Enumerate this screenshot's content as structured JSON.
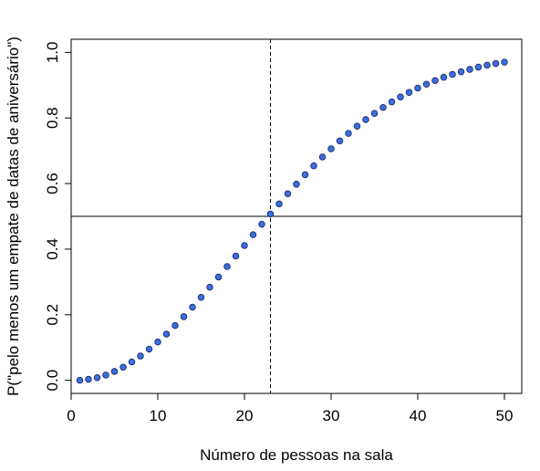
{
  "chart_data": {
    "type": "scatter",
    "xlabel": "Número de pessoas na sala",
    "ylabel": "P(\"pelo menos um empate de datas de aniversário\")",
    "xlim": [
      0,
      52
    ],
    "ylim": [
      -0.04,
      1.04
    ],
    "x_ticks": [
      0,
      10,
      20,
      30,
      40,
      50
    ],
    "y_ticks": [
      0.0,
      0.2,
      0.4,
      0.6,
      0.8,
      1.0
    ],
    "x_tick_labels": [
      "0",
      "10",
      "20",
      "30",
      "40",
      "50"
    ],
    "y_tick_labels": [
      "0.0",
      "0.2",
      "0.4",
      "0.6",
      "0.8",
      "1.0"
    ],
    "reference_lines": {
      "vertical_x": 23,
      "horizontal_y": 0.5
    },
    "grid": false,
    "legend": "none",
    "marker_color": "#3B6FE0",
    "marker_edge_color": "#1a2a66",
    "x": [
      1,
      2,
      3,
      4,
      5,
      6,
      7,
      8,
      9,
      10,
      11,
      12,
      13,
      14,
      15,
      16,
      17,
      18,
      19,
      20,
      21,
      22,
      23,
      24,
      25,
      26,
      27,
      28,
      29,
      30,
      31,
      32,
      33,
      34,
      35,
      36,
      37,
      38,
      39,
      40,
      41,
      42,
      43,
      44,
      45,
      46,
      47,
      48,
      49,
      50
    ],
    "y": [
      0.0,
      0.003,
      0.008,
      0.016,
      0.027,
      0.04,
      0.056,
      0.074,
      0.095,
      0.117,
      0.141,
      0.167,
      0.194,
      0.223,
      0.253,
      0.284,
      0.315,
      0.347,
      0.379,
      0.411,
      0.444,
      0.476,
      0.507,
      0.538,
      0.569,
      0.598,
      0.627,
      0.654,
      0.681,
      0.706,
      0.73,
      0.753,
      0.775,
      0.795,
      0.814,
      0.832,
      0.849,
      0.864,
      0.878,
      0.891,
      0.903,
      0.914,
      0.924,
      0.933,
      0.941,
      0.948,
      0.955,
      0.961,
      0.966,
      0.97
    ]
  }
}
